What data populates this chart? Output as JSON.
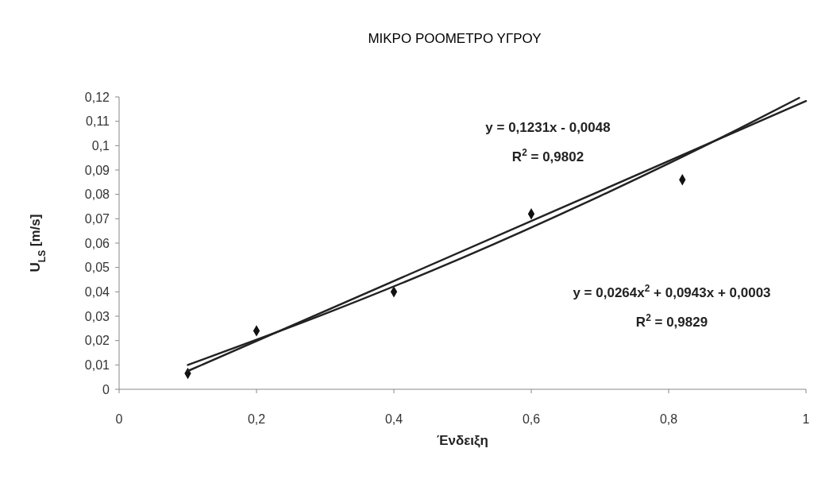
{
  "chart_data": {
    "type": "scatter",
    "title": "ΜΙΚΡΟ ΡΟΟΜΕΤΡΟ ΥΓΡΟΥ",
    "xlabel": "Ένδειξη",
    "ylabel": "U$_{LS}$ [m/s]",
    "x": [
      0.1,
      0.2,
      0.4,
      0.6,
      0.82
    ],
    "series": [
      {
        "color": "#111111",
        "marker": "diamond",
        "values": [
          0.0065,
          0.024,
          0.04,
          0.072,
          0.086
        ]
      },
      {
        "type": "line",
        "color": "#222222",
        "marker": "none",
        "line_style": "solid",
        "x": [
          0.1,
          1
        ],
        "values": [
          0.0075,
          0.1183
        ]
      },
      {
        "type": "line",
        "color": "#222222",
        "marker": "none",
        "line_style": "solid",
        "x": [
          0.1,
          0.3,
          0.5,
          0.7,
          0.9,
          0.99
        ],
        "values": [
          0.01,
          0.031,
          0.054,
          0.0793,
          0.1066,
          0.1196
        ]
      }
    ],
    "annotations": [
      "y = 0,1231x - 0,0048",
      "R$^{2}$ = 0,9802",
      "y = 0,0264x$^{2}$ + 0,0943x + 0,0003",
      "R$^{2}$ = 0,9829"
    ],
    "xlim": [
      0,
      1
    ],
    "xticks": [
      0,
      {
        "value": 0.2,
        "label": "0,2"
      },
      {
        "value": 0.4,
        "label": "0,4"
      },
      {
        "value": 0.6,
        "label": "0,6"
      },
      {
        "value": 0.8,
        "label": "0,8"
      },
      1
    ],
    "ylim": [
      0,
      0.12
    ],
    "yticks": [
      0,
      {
        "value": 0.01,
        "label": "0,01"
      },
      {
        "value": 0.02,
        "label": "0,02"
      },
      {
        "value": 0.03,
        "label": "0,03"
      },
      {
        "value": 0.04,
        "label": "0,04"
      },
      {
        "value": 0.05,
        "label": "0,05"
      },
      {
        "value": 0.06,
        "label": "0,06"
      },
      {
        "value": 0.07,
        "label": "0,07"
      },
      {
        "value": 0.08,
        "label": "0,08"
      },
      {
        "value": 0.09,
        "label": "0,09"
      },
      {
        "value": 0.1,
        "label": "0,1"
      },
      {
        "value": 0.11,
        "label": "0,11"
      },
      {
        "value": 0.12,
        "label": "0,12"
      }
    ],
    "grid": false
  }
}
